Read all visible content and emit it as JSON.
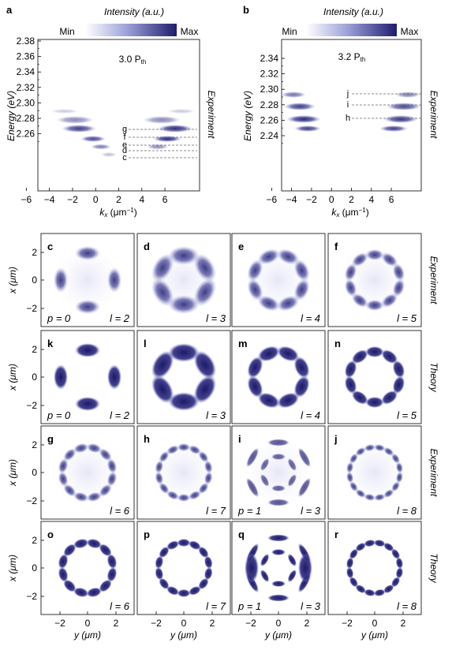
{
  "figure": {
    "top_panels": [
      {
        "letter": "a",
        "intensity_title": "Intensity (a.u.)",
        "cbar_min": "Min",
        "cbar_max": "Max",
        "power_label": "3.0 P",
        "power_sub": "th",
        "ylabel": "Energy (eV)",
        "xlabel": "k",
        "xlabel_sub": "x",
        "xlabel_unit": " (μm",
        "xlabel_exp": "−1",
        "xlabel_close": ")",
        "side_label": "Experiment",
        "yticks": [
          "2.38",
          "2.36",
          "2.34",
          "2.32",
          "2.30",
          "2.28",
          "2.26"
        ],
        "xticks": [
          "−6",
          "−4",
          "−2",
          "0",
          "2",
          "4",
          "6"
        ],
        "mode_labels": [
          "g",
          "f",
          "e",
          "d",
          "c"
        ]
      },
      {
        "letter": "b",
        "intensity_title": "Intensity (a.u.)",
        "cbar_min": "Min",
        "cbar_max": "Max",
        "power_label": "3.2 P",
        "power_sub": "th",
        "ylabel": "Energy (eV)",
        "xlabel": "k",
        "xlabel_sub": "x",
        "xlabel_unit": " (μm",
        "xlabel_exp": "−1",
        "xlabel_close": ")",
        "side_label": "Experiment",
        "yticks": [
          "2.34",
          "2.32",
          "2.30",
          "2.28",
          "2.26",
          "2.24"
        ],
        "xticks": [
          "−6",
          "−4",
          "−2",
          "0",
          "2",
          "4",
          "6"
        ],
        "mode_labels": [
          "j",
          "i",
          "h"
        ]
      }
    ],
    "grid": {
      "row_side_labels": [
        "Experiment",
        "Theory",
        "Experiment",
        "Theory"
      ],
      "ylabel": "x (μm)",
      "xlabel": "y (μm)",
      "yticks": [
        "2",
        "0",
        "−2"
      ],
      "xticks": [
        "−2",
        "0",
        "2"
      ],
      "panels": [
        {
          "letter": "c",
          "p": "p = 0",
          "l": "l = 2",
          "lobes": 4,
          "kind": "exp"
        },
        {
          "letter": "d",
          "p": "",
          "l": "l = 3",
          "lobes": 6,
          "kind": "exp"
        },
        {
          "letter": "e",
          "p": "",
          "l": "l = 4",
          "lobes": 8,
          "kind": "exp"
        },
        {
          "letter": "f",
          "p": "",
          "l": "l = 5",
          "lobes": 10,
          "kind": "exp"
        },
        {
          "letter": "k",
          "p": "p = 0",
          "l": "l = 2",
          "lobes": 4,
          "kind": "theory"
        },
        {
          "letter": "l",
          "p": "",
          "l": "l = 3",
          "lobes": 6,
          "kind": "theory"
        },
        {
          "letter": "m",
          "p": "",
          "l": "l = 4",
          "lobes": 8,
          "kind": "theory"
        },
        {
          "letter": "n",
          "p": "",
          "l": "l = 5",
          "lobes": 10,
          "kind": "theory"
        },
        {
          "letter": "g",
          "p": "",
          "l": "l = 6",
          "lobes": 12,
          "kind": "exp"
        },
        {
          "letter": "h",
          "p": "",
          "l": "l = 7",
          "lobes": 14,
          "kind": "exp"
        },
        {
          "letter": "i",
          "p": "p = 1",
          "l": "l = 3",
          "lobes": 6,
          "kind": "exp-double"
        },
        {
          "letter": "j",
          "p": "",
          "l": "l = 8",
          "lobes": 16,
          "kind": "exp"
        },
        {
          "letter": "o",
          "p": "",
          "l": "l = 6",
          "lobes": 12,
          "kind": "theory"
        },
        {
          "letter": "p",
          "p": "",
          "l": "l = 7",
          "lobes": 14,
          "kind": "theory"
        },
        {
          "letter": "q",
          "p": "p = 1",
          "l": "l = 3",
          "lobes": 6,
          "kind": "theory-double"
        },
        {
          "letter": "r",
          "p": "",
          "l": "l = 8",
          "lobes": 16,
          "kind": "theory"
        }
      ]
    },
    "colors": {
      "accent": "#1f1c6e",
      "light": "#e4e6f4"
    }
  }
}
